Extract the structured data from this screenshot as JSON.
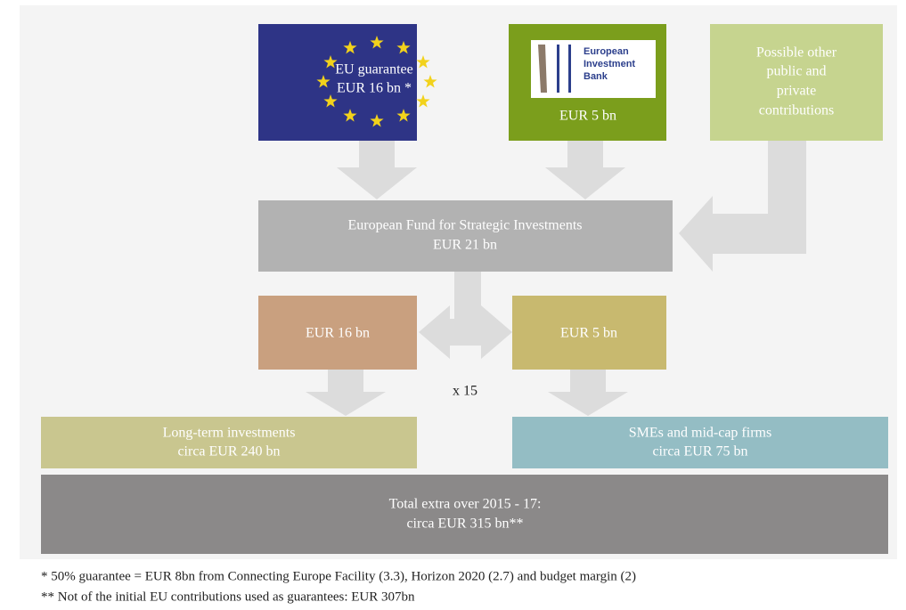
{
  "nodes": {
    "eu": {
      "lines": [
        "EU guarantee",
        "EUR 16 bn *"
      ]
    },
    "eib": {
      "logo": [
        "European",
        "Investment",
        "Bank"
      ],
      "amount": "EUR 5 bn"
    },
    "other": {
      "lines": [
        "Possible other",
        "public and",
        "private",
        "contributions"
      ]
    },
    "fund": {
      "lines": [
        "European Fund for Strategic Investments",
        "EUR 21 bn"
      ]
    },
    "left_split": {
      "lines": [
        "EUR 16 bn"
      ]
    },
    "right_split": {
      "lines": [
        "EUR 5 bn"
      ]
    },
    "multiplier": "x 15",
    "long_term": {
      "lines": [
        "Long-term investments",
        "circa EUR 240 bn"
      ]
    },
    "smes": {
      "lines": [
        "SMEs and mid-cap firms",
        "circa EUR 75 bn"
      ]
    },
    "total": {
      "lines": [
        "Total extra over 2015 - 17:",
        "circa EUR 315 bn**"
      ]
    }
  },
  "footnotes": [
    "* 50% guarantee = EUR 8bn from Connecting Europe Facility (3.3), Horizon 2020 (2.7) and budget margin (2)",
    "** Not of the initial EU contributions used as guarantees: EUR 307bn"
  ]
}
